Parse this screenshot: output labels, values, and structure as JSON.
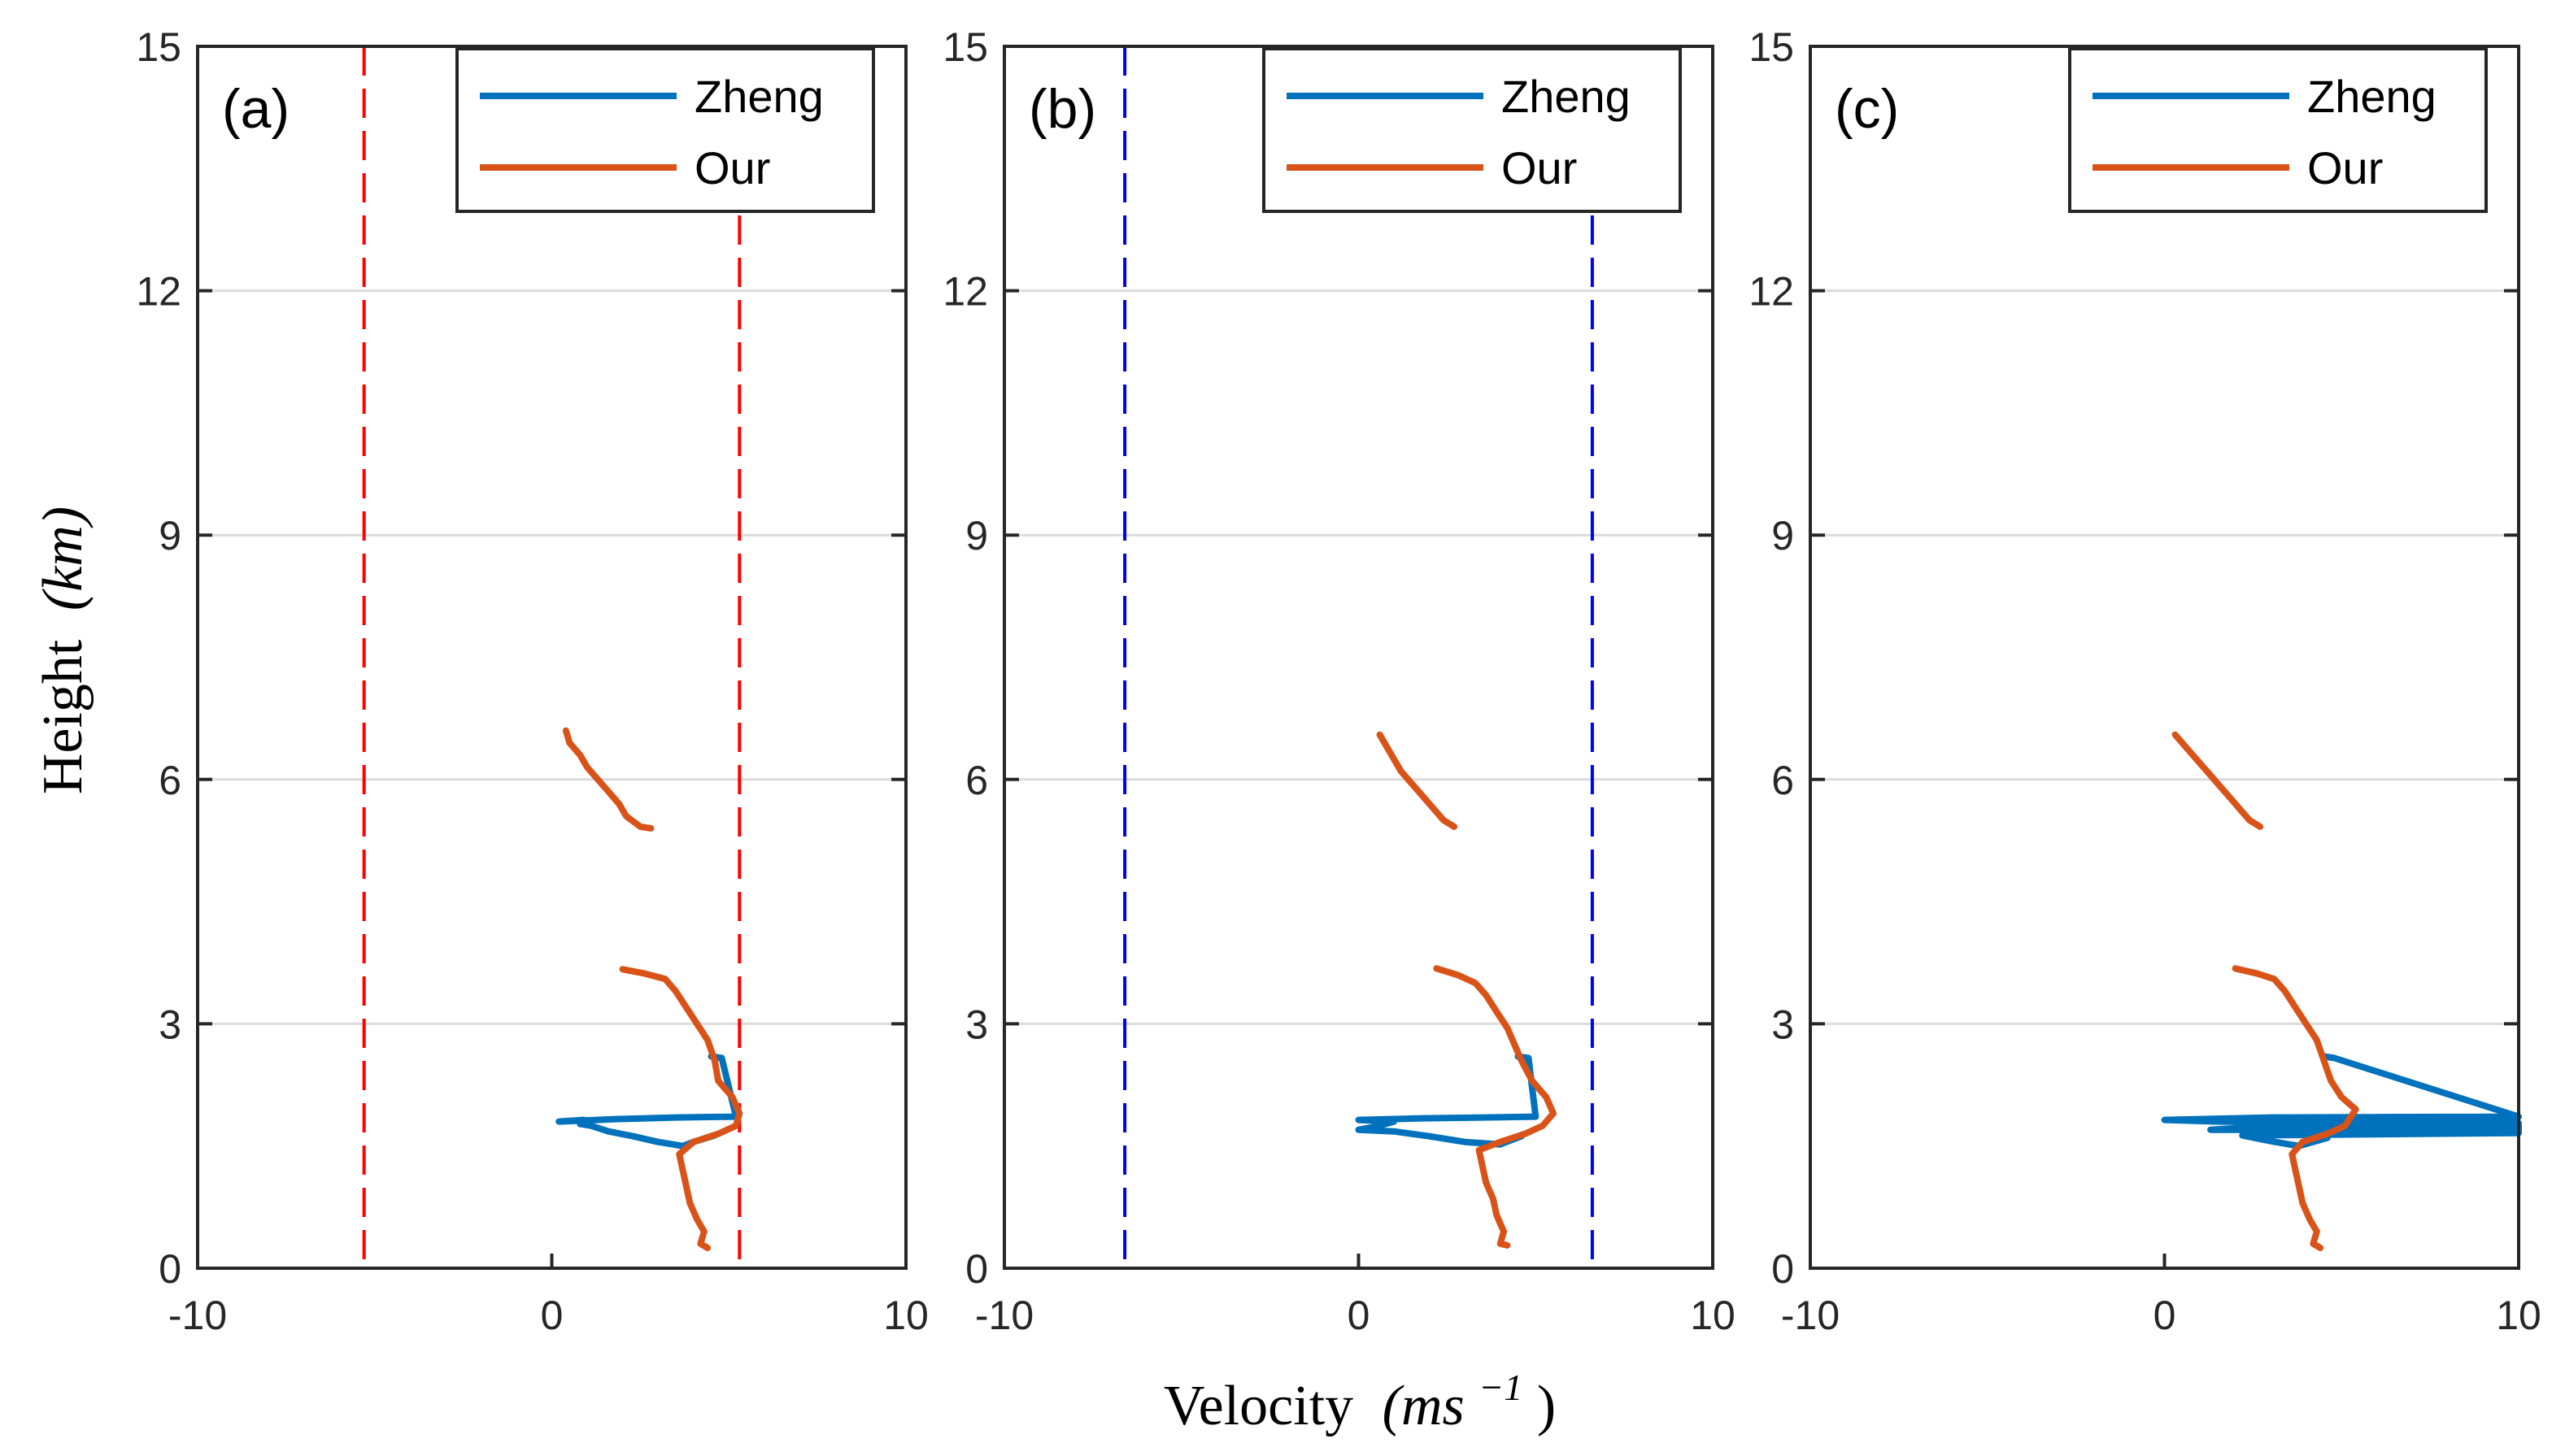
{
  "chart_data": [
    {
      "type": "line",
      "panel_label": "(a)",
      "xlim": [
        -10,
        10
      ],
      "ylim": [
        0,
        15
      ],
      "xticks": [
        -10,
        0,
        10
      ],
      "yticks": [
        0,
        3,
        6,
        9,
        12,
        15
      ],
      "grid": "horizontal",
      "legend_position": "top-right",
      "vlines": {
        "color": "#ff0000",
        "x": [
          -5.3,
          5.3
        ]
      },
      "series": [
        {
          "name": "Zheng",
          "color": "#0072bd",
          "points": [
            [
              4.5,
              2.6
            ],
            [
              4.8,
              2.58
            ],
            [
              5.2,
              1.86
            ],
            [
              3.5,
              1.85
            ],
            [
              1.8,
              1.83
            ],
            [
              0.2,
              1.8
            ],
            [
              0.9,
              1.82
            ],
            [
              0.8,
              1.77
            ],
            [
              1.1,
              1.75
            ],
            [
              1.6,
              1.68
            ],
            [
              2.3,
              1.62
            ],
            [
              3.0,
              1.55
            ],
            [
              3.7,
              1.5
            ],
            [
              4.0,
              1.55
            ],
            [
              4.6,
              1.63
            ]
          ]
        },
        {
          "name": "Our",
          "color": "#d95319",
          "points": [
            [
              0.4,
              6.6
            ],
            [
              0.5,
              6.45
            ],
            [
              0.8,
              6.3
            ],
            [
              1.0,
              6.15
            ],
            [
              1.3,
              6.0
            ],
            [
              1.6,
              5.85
            ],
            [
              1.9,
              5.7
            ],
            [
              2.1,
              5.55
            ],
            [
              2.5,
              5.42
            ],
            [
              2.8,
              5.4
            ]
          ]
        },
        {
          "name": "Our",
          "color": "#d95319",
          "points": [
            [
              2.0,
              3.67
            ],
            [
              2.6,
              3.62
            ],
            [
              3.2,
              3.55
            ],
            [
              3.5,
              3.4
            ],
            [
              3.8,
              3.2
            ],
            [
              4.1,
              3.0
            ],
            [
              4.4,
              2.8
            ],
            [
              4.6,
              2.55
            ],
            [
              4.7,
              2.3
            ],
            [
              5.1,
              2.1
            ],
            [
              5.3,
              1.9
            ],
            [
              5.2,
              1.75
            ],
            [
              4.7,
              1.65
            ],
            [
              4.0,
              1.55
            ],
            [
              3.6,
              1.4
            ],
            [
              3.7,
              1.2
            ],
            [
              3.8,
              1.0
            ],
            [
              3.9,
              0.8
            ],
            [
              4.1,
              0.6
            ],
            [
              4.3,
              0.45
            ],
            [
              4.2,
              0.3
            ],
            [
              4.4,
              0.25
            ]
          ]
        }
      ]
    },
    {
      "type": "line",
      "panel_label": "(b)",
      "xlim": [
        -10,
        10
      ],
      "ylim": [
        0,
        15
      ],
      "xticks": [
        -10,
        0,
        10
      ],
      "yticks": [
        0,
        3,
        6,
        9,
        12,
        15
      ],
      "grid": "horizontal",
      "legend_position": "top-right",
      "vlines": {
        "color": "#0000ff",
        "x": [
          -6.6,
          6.6
        ]
      },
      "series": [
        {
          "name": "Zheng",
          "color": "#0072bd",
          "points": [
            [
              4.5,
              2.6
            ],
            [
              4.8,
              2.58
            ],
            [
              5.0,
              1.86
            ],
            [
              3.5,
              1.85
            ],
            [
              1.8,
              1.84
            ],
            [
              0.0,
              1.82
            ],
            [
              1.0,
              1.8
            ],
            [
              0.5,
              1.74
            ],
            [
              0.0,
              1.7
            ],
            [
              1.0,
              1.68
            ],
            [
              2.0,
              1.62
            ],
            [
              3.0,
              1.55
            ],
            [
              4.0,
              1.52
            ],
            [
              4.6,
              1.62
            ]
          ]
        },
        {
          "name": "Our",
          "color": "#d95319",
          "points": [
            [
              0.6,
              6.55
            ],
            [
              0.8,
              6.4
            ],
            [
              1.0,
              6.25
            ],
            [
              1.2,
              6.1
            ],
            [
              1.5,
              5.95
            ],
            [
              1.8,
              5.8
            ],
            [
              2.1,
              5.65
            ],
            [
              2.4,
              5.5
            ],
            [
              2.7,
              5.42
            ]
          ]
        },
        {
          "name": "Our",
          "color": "#d95319",
          "points": [
            [
              2.2,
              3.68
            ],
            [
              2.8,
              3.6
            ],
            [
              3.3,
              3.5
            ],
            [
              3.6,
              3.35
            ],
            [
              3.9,
              3.15
            ],
            [
              4.2,
              2.95
            ],
            [
              4.4,
              2.75
            ],
            [
              4.6,
              2.55
            ],
            [
              4.9,
              2.3
            ],
            [
              5.3,
              2.1
            ],
            [
              5.5,
              1.9
            ],
            [
              5.2,
              1.75
            ],
            [
              4.7,
              1.65
            ],
            [
              4.0,
              1.55
            ],
            [
              3.4,
              1.45
            ],
            [
              3.5,
              1.25
            ],
            [
              3.6,
              1.05
            ],
            [
              3.8,
              0.85
            ],
            [
              3.9,
              0.65
            ],
            [
              4.1,
              0.45
            ],
            [
              4.0,
              0.3
            ],
            [
              4.2,
              0.28
            ]
          ]
        }
      ]
    },
    {
      "type": "line",
      "panel_label": "(c)",
      "xlim": [
        -10,
        10
      ],
      "ylim": [
        0,
        15
      ],
      "xticks": [
        -10,
        0,
        10
      ],
      "yticks": [
        0,
        3,
        6,
        9,
        12,
        15
      ],
      "grid": "horizontal",
      "legend_position": "top-right",
      "vlines": null,
      "series": [
        {
          "name": "Zheng",
          "color": "#0072bd",
          "points": [
            [
              4.5,
              2.6
            ],
            [
              4.8,
              2.58
            ],
            [
              10,
              1.86
            ],
            [
              3.0,
              1.85
            ],
            [
              0.0,
              1.82
            ],
            [
              1.5,
              1.8
            ],
            [
              10,
              1.78
            ],
            [
              10,
              1.72
            ],
            [
              2.0,
              1.72
            ],
            [
              1.3,
              1.7
            ],
            [
              10,
              1.7
            ],
            [
              10,
              1.66
            ],
            [
              2.2,
              1.63
            ],
            [
              3.0,
              1.56
            ],
            [
              3.8,
              1.5
            ],
            [
              4.6,
              1.6
            ]
          ]
        },
        {
          "name": "Our",
          "color": "#d95319",
          "points": [
            [
              0.3,
              6.55
            ],
            [
              0.6,
              6.4
            ],
            [
              0.9,
              6.25
            ],
            [
              1.2,
              6.1
            ],
            [
              1.5,
              5.95
            ],
            [
              1.8,
              5.8
            ],
            [
              2.1,
              5.65
            ],
            [
              2.4,
              5.5
            ],
            [
              2.7,
              5.42
            ]
          ]
        },
        {
          "name": "Our",
          "color": "#d95319",
          "points": [
            [
              2.0,
              3.68
            ],
            [
              2.6,
              3.62
            ],
            [
              3.1,
              3.55
            ],
            [
              3.4,
              3.4
            ],
            [
              3.7,
              3.2
            ],
            [
              4.0,
              3.0
            ],
            [
              4.3,
              2.8
            ],
            [
              4.5,
              2.55
            ],
            [
              4.7,
              2.3
            ],
            [
              5.0,
              2.1
            ],
            [
              5.4,
              1.95
            ],
            [
              5.1,
              1.75
            ],
            [
              4.6,
              1.65
            ],
            [
              3.9,
              1.55
            ],
            [
              3.6,
              1.4
            ],
            [
              3.7,
              1.2
            ],
            [
              3.8,
              1.0
            ],
            [
              3.9,
              0.8
            ],
            [
              4.1,
              0.6
            ],
            [
              4.3,
              0.45
            ],
            [
              4.2,
              0.3
            ],
            [
              4.4,
              0.25
            ]
          ]
        }
      ]
    }
  ],
  "axes": {
    "ylabel_text": "Height",
    "ylabel_unit": "(km)",
    "xlabel_text": "Velocity",
    "xlabel_unit_base": "(ms",
    "xlabel_unit_exp": "−1",
    "xlabel_unit_close": ")"
  },
  "legend": {
    "entries": [
      "Zheng",
      "Our"
    ]
  }
}
